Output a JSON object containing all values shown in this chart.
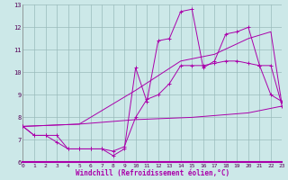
{
  "xlabel": "Windchill (Refroidissement éolien,°C)",
  "xlim": [
    0,
    23
  ],
  "ylim": [
    6,
    13
  ],
  "yticks": [
    6,
    7,
    8,
    9,
    10,
    11,
    12,
    13
  ],
  "xticks": [
    0,
    1,
    2,
    3,
    4,
    5,
    6,
    7,
    8,
    9,
    10,
    11,
    12,
    13,
    14,
    15,
    16,
    17,
    18,
    19,
    20,
    21,
    22,
    23
  ],
  "bg_color": "#cce8e8",
  "line_color": "#aa00aa",
  "grid_color": "#99bbbb",
  "line1_x": [
    0,
    1,
    2,
    3,
    4,
    5,
    6,
    7,
    8,
    9,
    10,
    11,
    12,
    13,
    14,
    15,
    16,
    17,
    18,
    19,
    20,
    21,
    22,
    23
  ],
  "line1_y": [
    7.6,
    7.2,
    7.2,
    7.2,
    6.6,
    6.6,
    6.6,
    6.6,
    6.3,
    6.6,
    10.2,
    8.7,
    11.4,
    11.5,
    12.7,
    12.8,
    10.2,
    10.5,
    11.7,
    11.8,
    12.0,
    10.3,
    10.3,
    8.5
  ],
  "line2_x": [
    0,
    1,
    2,
    3,
    4,
    5,
    6,
    7,
    8,
    9,
    10,
    11,
    12,
    13,
    14,
    15,
    16,
    17,
    18,
    19,
    20,
    21,
    22,
    23
  ],
  "line2_y": [
    7.6,
    7.2,
    7.2,
    6.9,
    6.6,
    6.6,
    6.6,
    6.6,
    6.5,
    6.7,
    8.0,
    8.8,
    9.0,
    9.5,
    10.3,
    10.3,
    10.3,
    10.4,
    10.5,
    10.5,
    10.4,
    10.3,
    9.0,
    8.7
  ],
  "line3_x": [
    0,
    5,
    10,
    14,
    17,
    20,
    22,
    23
  ],
  "line3_y": [
    7.6,
    7.7,
    9.2,
    10.5,
    10.8,
    11.5,
    11.8,
    8.5
  ],
  "line4_x": [
    0,
    5,
    10,
    15,
    20,
    23
  ],
  "line4_y": [
    7.6,
    7.7,
    7.9,
    8.0,
    8.2,
    8.5
  ]
}
